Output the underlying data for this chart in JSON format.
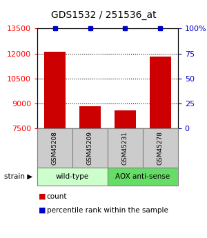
{
  "title": "GDS1532 / 251536_at",
  "samples": [
    "GSM45208",
    "GSM45209",
    "GSM45231",
    "GSM45278"
  ],
  "counts": [
    12100,
    8820,
    8600,
    11820
  ],
  "percentiles": [
    100,
    100,
    100,
    100
  ],
  "ylim_left": [
    7500,
    13500
  ],
  "ylim_right": [
    0,
    100
  ],
  "yticks_left": [
    7500,
    9000,
    10500,
    12000,
    13500
  ],
  "yticks_right": [
    0,
    25,
    50,
    75,
    100
  ],
  "yticklabels_right": [
    "0",
    "25",
    "50",
    "75",
    "100%"
  ],
  "bar_color": "#cc0000",
  "percentile_color": "#0000cc",
  "bar_width": 0.6,
  "groups": [
    {
      "label": "wild-type",
      "indices": [
        0,
        1
      ],
      "color": "#ccffcc"
    },
    {
      "label": "AOX anti-sense",
      "indices": [
        2,
        3
      ],
      "color": "#66dd66"
    }
  ],
  "group_row_label": "strain",
  "legend_count_label": "count",
  "legend_percentile_label": "percentile rank within the sample",
  "background_color": "#ffffff",
  "plot_bg_color": "#ffffff",
  "sample_box_color": "#cccccc"
}
